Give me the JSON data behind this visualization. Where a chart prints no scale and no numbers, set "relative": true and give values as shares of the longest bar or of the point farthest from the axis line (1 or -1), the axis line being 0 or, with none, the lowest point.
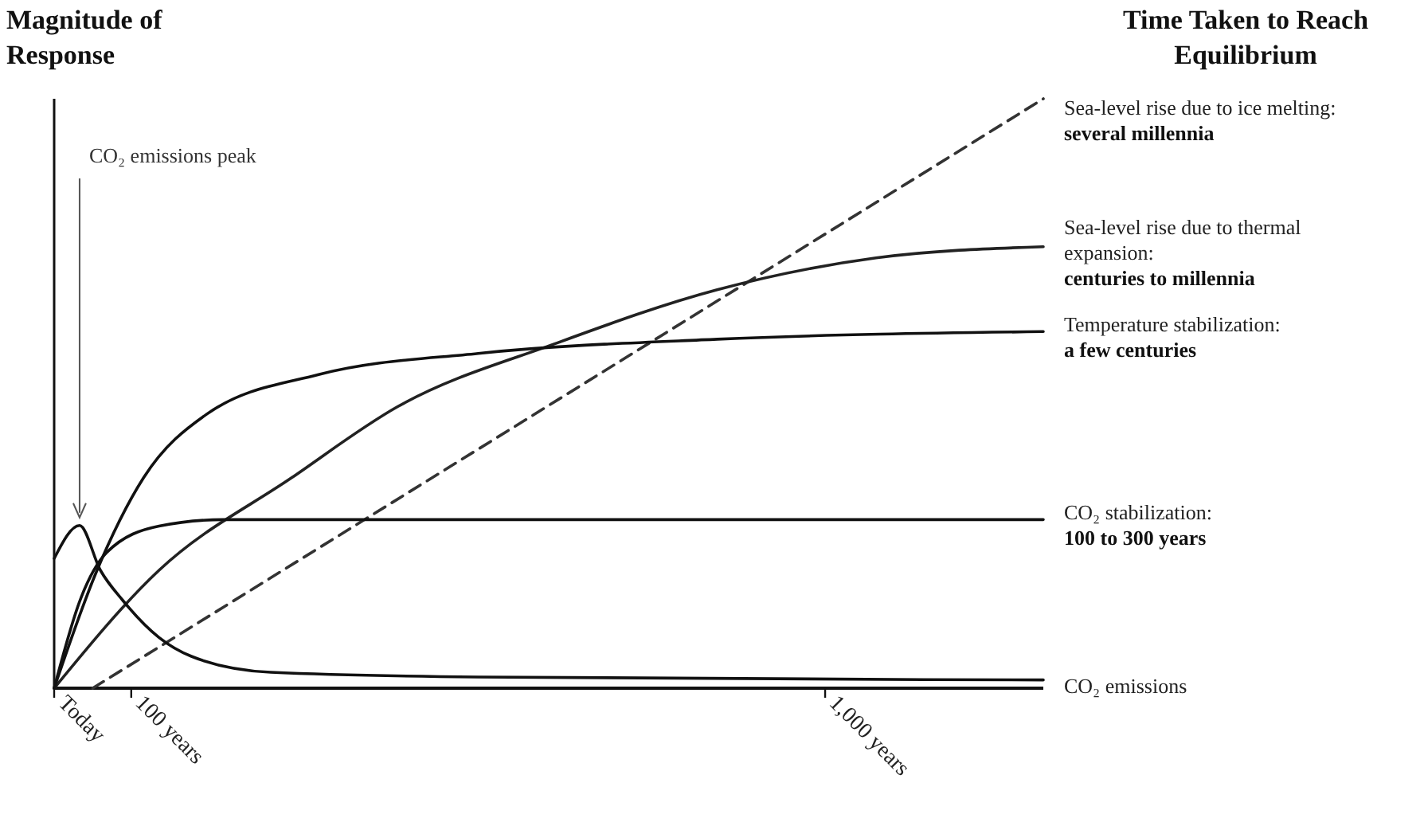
{
  "chart_data": {
    "type": "line",
    "relative": true,
    "ylabel": "Magnitude of Response",
    "legend_title": "Time Taken to Reach Equilibrium",
    "legend": "right",
    "xlim": [
      0,
      1283
    ],
    "xticks": [
      {
        "value": 0,
        "label": "Today"
      },
      {
        "value": 100,
        "label": "100 years"
      },
      {
        "value": 1000,
        "label": "1,000 years"
      }
    ],
    "series": [
      {
        "name": "Sea-level rise due to ice melting:",
        "color": "#333333",
        "line_style": "dashed",
        "x": [
          50,
          1283
        ],
        "values": [
          0,
          1
        ]
      },
      {
        "name": "Sea-level rise due to thermal expansion:",
        "color": "#222222",
        "line_style": "solid",
        "x": [
          0,
          136,
          308,
          446,
          653,
          860,
          1066,
          1283
        ],
        "values": [
          0,
          0.2,
          0.357,
          0.478,
          0.586,
          0.676,
          0.73,
          0.749
        ]
      },
      {
        "name": "Temperature stabilization:",
        "color": "#111111",
        "line_style": "solid",
        "x": [
          0,
          54,
          116,
          198,
          343,
          550,
          860,
          1283
        ],
        "values": [
          0,
          0.195,
          0.357,
          0.465,
          0.532,
          0.568,
          0.592,
          0.605
        ]
      },
      {
        "name": "CO₂ stabilization:",
        "color": "#111111",
        "line_style": "solid",
        "x": [
          0,
          35,
          68,
          136,
          219,
          1283
        ],
        "values": [
          0,
          0.154,
          0.23,
          0.275,
          0.286,
          0.286
        ]
      },
      {
        "name": "CO₂ emissions",
        "color": "#111111",
        "line_style": "solid",
        "x": [
          0,
          33,
          60,
          89,
          136,
          178,
          281,
          550,
          1283
        ],
        "values": [
          0.22,
          0.276,
          0.2,
          0.149,
          0.086,
          0.054,
          0.027,
          0.019,
          0.014
        ]
      }
    ],
    "annotations": [
      "several millennia",
      "centuries to millennia",
      "a few centuries",
      "100 to 300 years",
      {
        "text": "CO₂ emissions peak",
        "x": 33,
        "y": 0.276
      }
    ]
  }
}
